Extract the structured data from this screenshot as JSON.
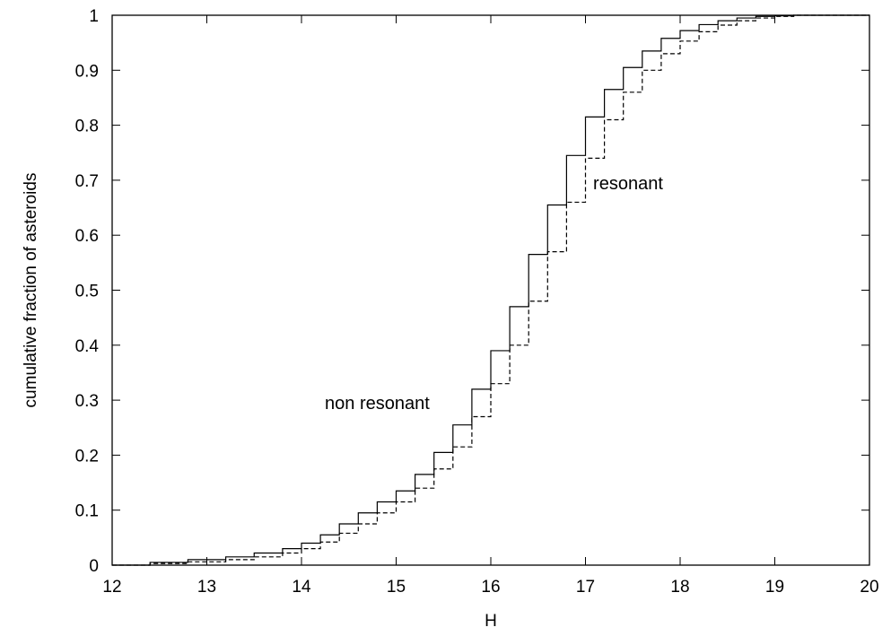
{
  "chart_data": {
    "type": "line",
    "xlabel": "H",
    "ylabel": "cumulative fraction of asteroids",
    "xlim": [
      12,
      20
    ],
    "ylim": [
      0,
      1
    ],
    "xticks": [
      "12",
      "13",
      "14",
      "15",
      "16",
      "17",
      "18",
      "19",
      "20"
    ],
    "yticks": [
      "0",
      "0.1",
      "0.2",
      "0.3",
      "0.4",
      "0.5",
      "0.6",
      "0.7",
      "0.8",
      "0.9",
      "1"
    ],
    "grid": false,
    "legend": "none",
    "series": [
      {
        "name": "non resonant",
        "style": "solid",
        "step": true,
        "x": [
          12.0,
          12.4,
          12.8,
          13.2,
          13.5,
          13.8,
          14.0,
          14.2,
          14.4,
          14.6,
          14.8,
          15.0,
          15.2,
          15.4,
          15.6,
          15.8,
          16.0,
          16.2,
          16.4,
          16.6,
          16.8,
          17.0,
          17.2,
          17.4,
          17.6,
          17.8,
          18.0,
          18.2,
          18.4,
          18.6,
          18.8,
          19.0,
          19.2,
          20.0
        ],
        "values": [
          0.0,
          0.005,
          0.01,
          0.015,
          0.022,
          0.03,
          0.04,
          0.055,
          0.075,
          0.095,
          0.115,
          0.135,
          0.165,
          0.205,
          0.255,
          0.32,
          0.39,
          0.47,
          0.565,
          0.655,
          0.745,
          0.815,
          0.865,
          0.905,
          0.935,
          0.958,
          0.972,
          0.983,
          0.99,
          0.995,
          0.998,
          0.999,
          1.0,
          1.0
        ]
      },
      {
        "name": "resonant",
        "style": "dashed",
        "step": true,
        "x": [
          12.0,
          12.4,
          12.8,
          13.2,
          13.5,
          13.8,
          14.0,
          14.2,
          14.4,
          14.6,
          14.8,
          15.0,
          15.2,
          15.4,
          15.6,
          15.8,
          16.0,
          16.2,
          16.4,
          16.6,
          16.8,
          17.0,
          17.2,
          17.4,
          17.6,
          17.8,
          18.0,
          18.2,
          18.4,
          18.6,
          18.8,
          19.0,
          19.2,
          20.0
        ],
        "values": [
          0.0,
          0.003,
          0.006,
          0.01,
          0.015,
          0.022,
          0.03,
          0.042,
          0.058,
          0.075,
          0.095,
          0.115,
          0.14,
          0.175,
          0.215,
          0.27,
          0.33,
          0.4,
          0.48,
          0.57,
          0.66,
          0.74,
          0.81,
          0.86,
          0.9,
          0.93,
          0.953,
          0.97,
          0.982,
          0.99,
          0.995,
          0.998,
          1.0,
          1.0
        ]
      }
    ],
    "annotations": [
      {
        "text": "resonant",
        "x": 17.45,
        "y": 0.695
      },
      {
        "text": "non resonant",
        "x": 14.8,
        "y": 0.295
      }
    ]
  }
}
